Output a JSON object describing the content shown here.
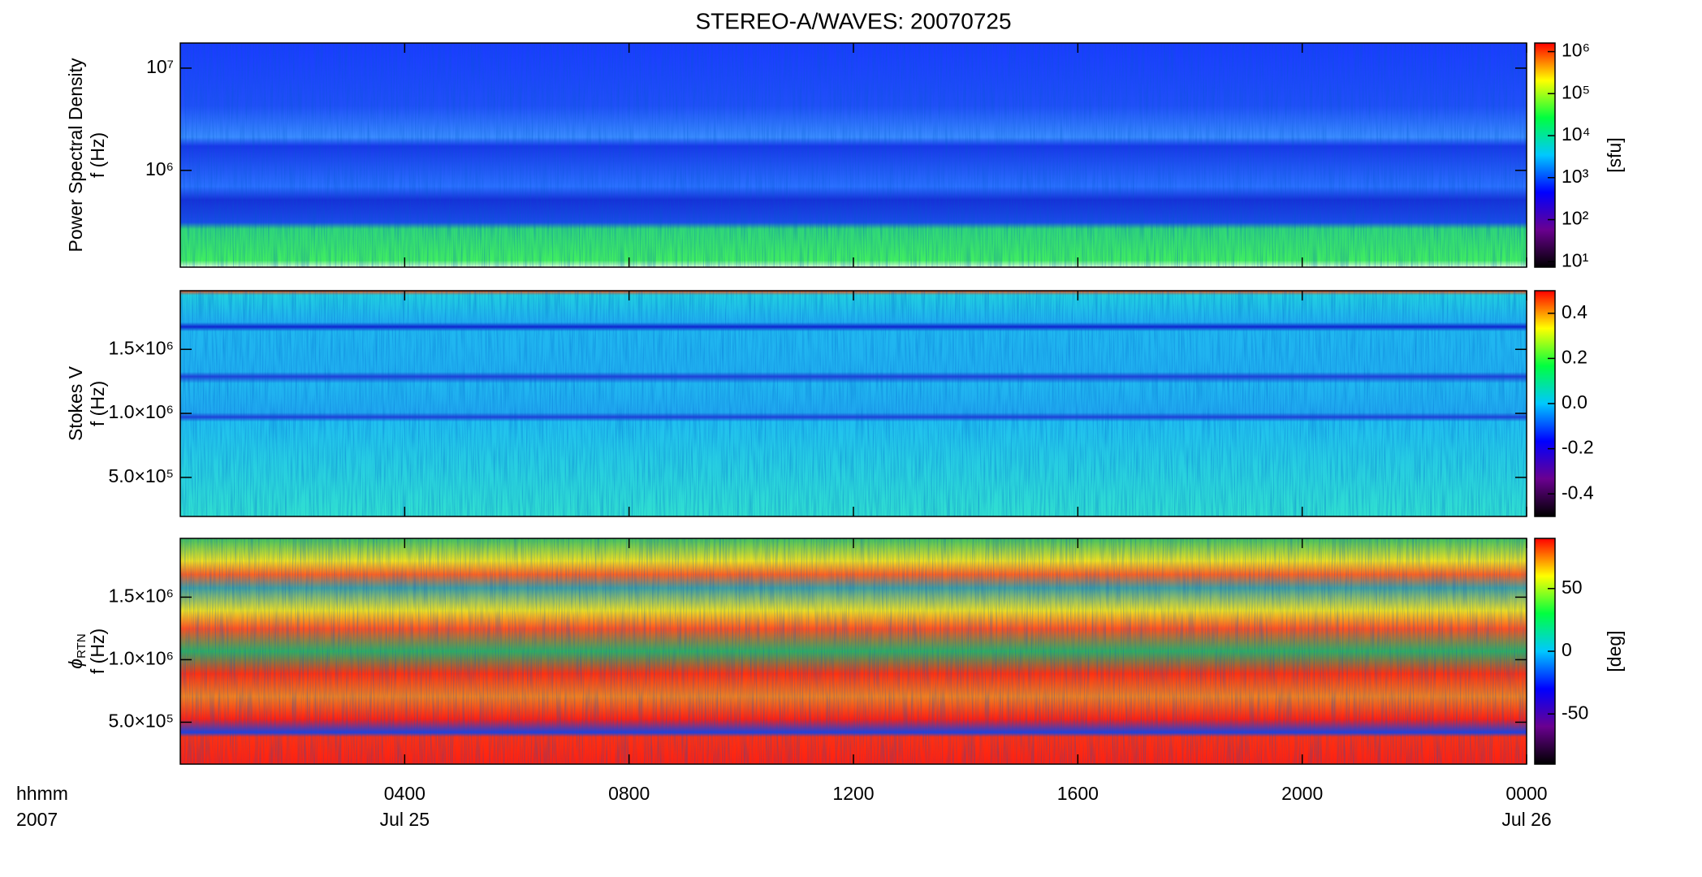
{
  "title": "STEREO-A/WAVES: 20070725",
  "xlim": [
    0,
    24
  ],
  "xticks": [
    {
      "value": 4,
      "label": "0400"
    },
    {
      "value": 8,
      "label": "0800"
    },
    {
      "value": 12,
      "label": "1200"
    },
    {
      "value": 16,
      "label": "1600"
    },
    {
      "value": 20,
      "label": "2000"
    },
    {
      "value": 24,
      "label": "0000"
    }
  ],
  "xdates": [
    {
      "value": 4,
      "label": "Jul 25"
    },
    {
      "value": 24,
      "label": "Jul 26"
    }
  ],
  "xaxis_labels": [
    "hhmm",
    "2007"
  ],
  "colormap": [
    "#000000",
    "#6a0090",
    "#0000ff",
    "#00c8ff",
    "#00ff40",
    "#ffff00",
    "#ff0000"
  ],
  "chart_data": [
    {
      "type": "heatmap",
      "ylabel": [
        "Power Spectral Density",
        "f (Hz)"
      ],
      "ylog": true,
      "ylim": [
        113000,
        17600000
      ],
      "yticks": [
        {
          "value": 1000000,
          "label": "10⁶"
        },
        {
          "value": 10000000,
          "label": "10⁷"
        }
      ],
      "zlog": true,
      "zlim": [
        7.4,
        1600000
      ],
      "zticks": [
        {
          "value": 10,
          "label": "10¹"
        },
        {
          "value": 100,
          "label": "10²"
        },
        {
          "value": 1000,
          "label": "10³"
        },
        {
          "value": 10000,
          "label": "10⁴"
        },
        {
          "value": 100000,
          "label": "10⁵"
        },
        {
          "value": 1000000,
          "label": "10⁶"
        }
      ],
      "zlabel": "[sfu]"
    },
    {
      "type": "heatmap",
      "ylabel": [
        "Stokes V",
        "f (Hz)"
      ],
      "ylog": false,
      "ylim": [
        195000,
        1958000
      ],
      "yticks": [
        {
          "value": 500000,
          "label": "5.0×10⁵"
        },
        {
          "value": 1000000,
          "label": "1.0×10⁶"
        },
        {
          "value": 1500000,
          "label": "1.5×10⁶"
        }
      ],
      "zlog": false,
      "zlim": [
        -0.5,
        0.5
      ],
      "zticks": [
        -0.4,
        -0.2,
        {
          "value": 0,
          "label": "0.0"
        },
        0.2,
        0.4
      ]
    },
    {
      "type": "heatmap",
      "ylabel": [
        "ϕ",
        "f (Hz)"
      ],
      "ylabel_subscript": "RTN",
      "ylog": false,
      "ylim": [
        165000,
        1970000
      ],
      "yticks": [
        {
          "value": 500000,
          "label": "5.0×10⁵"
        },
        {
          "value": 1000000,
          "label": "1.0×10⁶"
        },
        {
          "value": 1500000,
          "label": "1.5×10⁶"
        }
      ],
      "zlog": false,
      "zlim": [
        -90,
        90
      ],
      "zticks": [
        -50,
        0,
        50
      ],
      "zlabel": "[deg]"
    }
  ]
}
